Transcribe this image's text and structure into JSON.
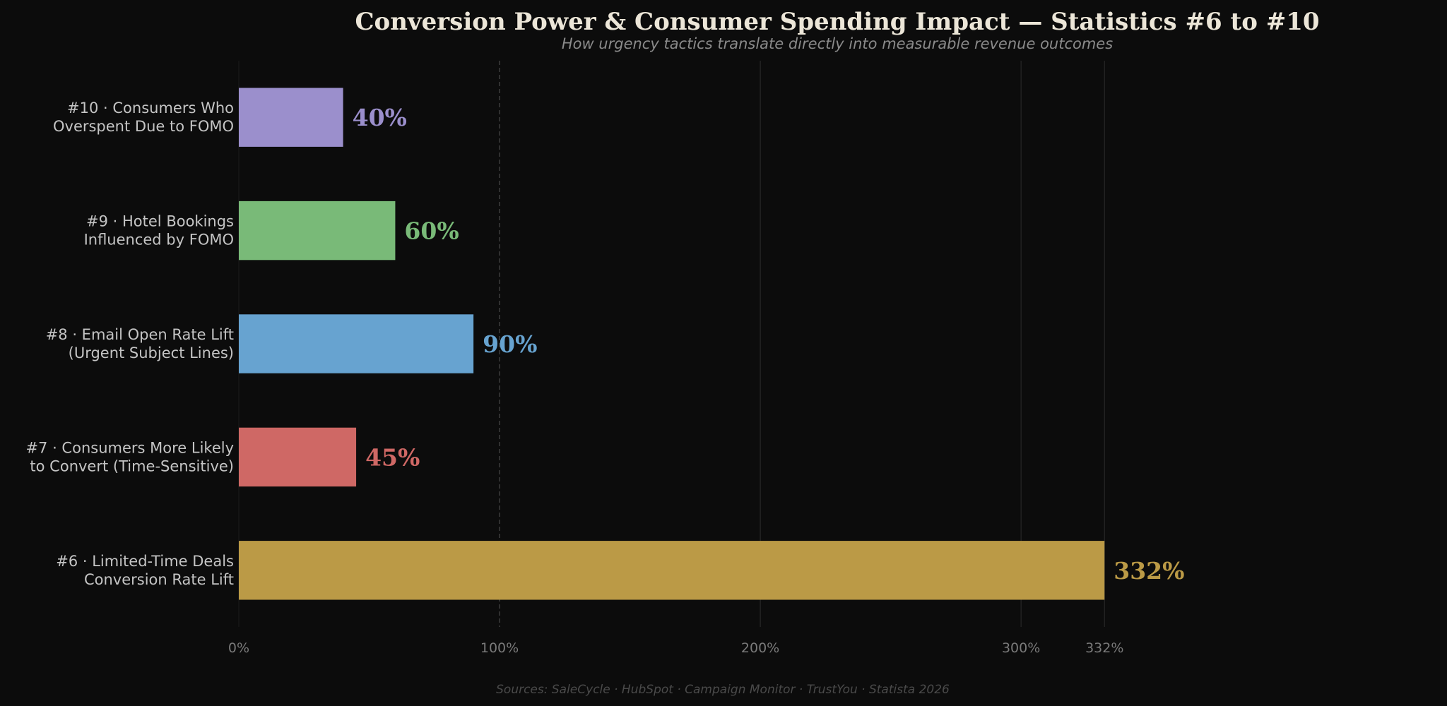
{
  "chart_data": {
    "type": "bar",
    "orientation": "horizontal",
    "title": "Conversion Power & Consumer Spending Impact — Statistics #6 to #10",
    "subtitle": "How urgency tactics translate directly into measurable revenue outcomes",
    "source": "Sources: SaleCycle · HubSpot · Campaign Monitor · TrustYou · Statista 2026",
    "xlim": [
      0,
      420
    ],
    "x_ticks": [
      0,
      100,
      200,
      300,
      332
    ],
    "x_tick_labels": [
      "0%",
      "100%",
      "200%",
      "300%",
      "332%"
    ],
    "reference_line": 100,
    "grid": true,
    "categories": [
      {
        "label_lines": [
          "#10 · Consumers Who",
          "Overspent Due to FOMO"
        ],
        "value": 40,
        "value_label": "40%",
        "color": "#9b8fcc"
      },
      {
        "label_lines": [
          "#9 · Hotel Bookings",
          "Influenced by FOMO"
        ],
        "value": 60,
        "value_label": "60%",
        "color": "#79ba78"
      },
      {
        "label_lines": [
          "#8 · Email Open Rate Lift",
          "(Urgent Subject Lines)"
        ],
        "value": 90,
        "value_label": "90%",
        "color": "#67a3d0"
      },
      {
        "label_lines": [
          "#7 · Consumers More Likely",
          "to Convert (Time-Sensitive)"
        ],
        "value": 45,
        "value_label": "45%",
        "color": "#cf6865"
      },
      {
        "label_lines": [
          "#6 · Limited-Time Deals",
          "Conversion Rate Lift"
        ],
        "value": 332,
        "value_label": "332%",
        "color": "#bb9a46"
      }
    ]
  }
}
